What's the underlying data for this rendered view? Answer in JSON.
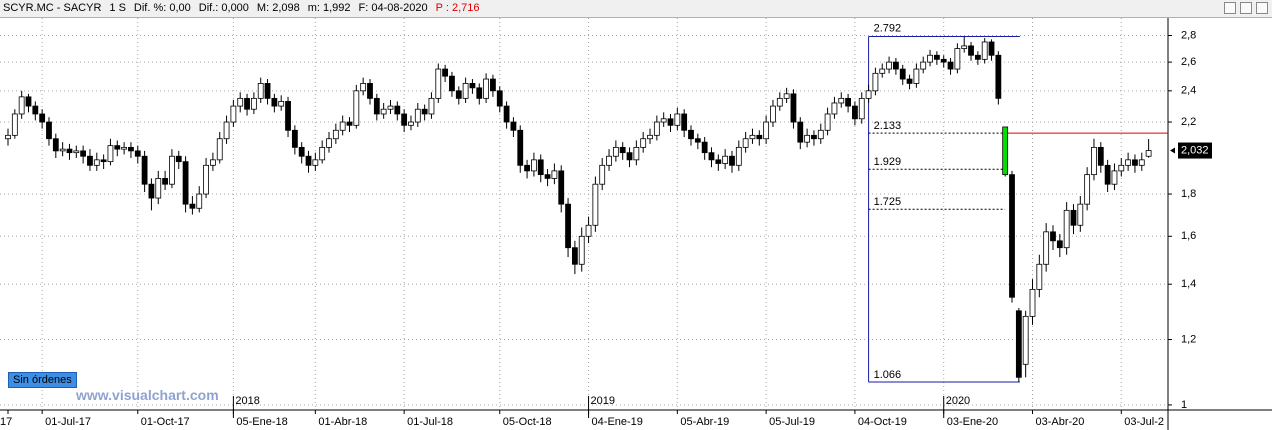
{
  "header": {
    "symbol": "SCYR.MC - SACYR",
    "period": "1 S",
    "dif_pct": "Dif. %: 0,00",
    "dif": "Dif.: 0,000",
    "max": "M: 2,098",
    "min": "m: 1,992",
    "date": "F: 04-08-2020",
    "price": "P : 2,716"
  },
  "status_badge": "Sin órdenes",
  "watermark": "www.visualchart.com",
  "chart_data": {
    "type": "candlestick",
    "log_scale": true,
    "grid": true,
    "up_color": "#ffffff",
    "down_color": "#000000",
    "highlight": {
      "index": 146,
      "color": "#00e000"
    },
    "ylim": [
      0.986,
      2.94
    ],
    "yticks": [
      1,
      {
        "value": 1.2,
        "label": "1,2"
      },
      {
        "value": 1.4,
        "label": "1,4"
      },
      {
        "value": 1.6,
        "label": "1,6"
      },
      {
        "value": 1.8,
        "label": "1,8"
      },
      {
        "value": 2.2,
        "label": "2,2"
      },
      {
        "value": 2.4,
        "label": "2,4"
      },
      {
        "value": 2.6,
        "label": "2,6"
      },
      {
        "value": 2.8,
        "label": "2,8"
      }
    ],
    "last_price": {
      "value": 2.032,
      "label": "2,032"
    },
    "year_ticks": [
      {
        "value": 33,
        "label": "2018"
      },
      {
        "value": 85,
        "label": "2019"
      },
      {
        "value": 137,
        "label": "2020"
      }
    ],
    "fibonacci": {
      "from_index": 126,
      "to_index": 148,
      "levels": [
        2.792,
        2.133,
        1.929,
        1.725,
        1.066
      ],
      "color": "#1a1aa8",
      "ref_color": "#e00000"
    },
    "categories": [
      "17",
      null,
      null,
      null,
      null,
      "01-Jul-17",
      null,
      null,
      null,
      null,
      null,
      null,
      null,
      null,
      null,
      null,
      null,
      null,
      null,
      "01-Oct-17",
      null,
      null,
      null,
      null,
      null,
      null,
      null,
      null,
      null,
      null,
      null,
      null,
      null,
      "05-Ene-18",
      null,
      null,
      null,
      null,
      null,
      null,
      null,
      null,
      null,
      null,
      null,
      "01-Abr-18",
      null,
      null,
      null,
      null,
      null,
      null,
      null,
      null,
      null,
      null,
      null,
      null,
      "01-Jul-18",
      null,
      null,
      null,
      null,
      null,
      null,
      null,
      null,
      null,
      null,
      null,
      null,
      null,
      "05-Oct-18",
      null,
      null,
      null,
      null,
      null,
      null,
      null,
      null,
      null,
      null,
      null,
      null,
      "04-Ene-19",
      null,
      null,
      null,
      null,
      null,
      null,
      null,
      null,
      null,
      null,
      null,
      null,
      "05-Abr-19",
      null,
      null,
      null,
      null,
      null,
      null,
      null,
      null,
      null,
      null,
      null,
      null,
      "05-Jul-19",
      null,
      null,
      null,
      null,
      null,
      null,
      null,
      null,
      null,
      null,
      null,
      null,
      "04-Oct-19",
      null,
      null,
      null,
      null,
      null,
      null,
      null,
      null,
      null,
      null,
      null,
      null,
      "03-Ene-20",
      null,
      null,
      null,
      null,
      null,
      null,
      null,
      null,
      null,
      null,
      null,
      null,
      "03-Abr-20",
      null,
      null,
      null,
      null,
      null,
      null,
      null,
      null,
      null,
      null,
      null,
      null,
      "03-Jul-2",
      null,
      null,
      null,
      null
    ],
    "ohlc": [
      [
        2.1,
        2.16,
        2.06,
        2.12
      ],
      [
        2.12,
        2.28,
        2.1,
        2.25
      ],
      [
        2.25,
        2.4,
        2.22,
        2.36
      ],
      [
        2.36,
        2.38,
        2.26,
        2.3
      ],
      [
        2.3,
        2.33,
        2.21,
        2.25
      ],
      [
        2.25,
        2.28,
        2.16,
        2.2
      ],
      [
        2.2,
        2.23,
        2.06,
        2.1
      ],
      [
        2.1,
        2.13,
        1.99,
        2.03
      ],
      [
        2.03,
        2.08,
        2.0,
        2.04
      ],
      [
        2.04,
        2.07,
        1.98,
        2.02
      ],
      [
        2.02,
        2.06,
        1.99,
        2.03
      ],
      [
        2.03,
        2.06,
        1.96,
        2.0
      ],
      [
        2.0,
        2.04,
        1.92,
        1.95
      ],
      [
        1.95,
        2.02,
        1.92,
        1.98
      ],
      [
        1.98,
        2.01,
        1.93,
        1.97
      ],
      [
        1.97,
        2.1,
        1.95,
        2.06
      ],
      [
        2.06,
        2.09,
        2.0,
        2.04
      ],
      [
        2.04,
        2.08,
        2.01,
        2.05
      ],
      [
        2.05,
        2.08,
        1.99,
        2.03
      ],
      [
        2.03,
        2.06,
        1.96,
        2.0
      ],
      [
        2.0,
        2.03,
        1.81,
        1.85
      ],
      [
        1.85,
        1.88,
        1.72,
        1.78
      ],
      [
        1.78,
        1.92,
        1.75,
        1.88
      ],
      [
        1.88,
        1.92,
        1.82,
        1.85
      ],
      [
        1.85,
        2.04,
        1.83,
        2.0
      ],
      [
        2.0,
        2.03,
        1.93,
        1.97
      ],
      [
        1.97,
        2.0,
        1.71,
        1.75
      ],
      [
        1.75,
        1.79,
        1.7,
        1.73
      ],
      [
        1.73,
        1.84,
        1.71,
        1.8
      ],
      [
        1.8,
        1.99,
        1.78,
        1.95
      ],
      [
        1.95,
        2.02,
        1.92,
        1.98
      ],
      [
        1.98,
        2.14,
        1.96,
        2.1
      ],
      [
        2.1,
        2.24,
        2.07,
        2.2
      ],
      [
        2.2,
        2.34,
        2.17,
        2.3
      ],
      [
        2.3,
        2.39,
        2.26,
        2.35
      ],
      [
        2.35,
        2.38,
        2.24,
        2.28
      ],
      [
        2.28,
        2.39,
        2.25,
        2.35
      ],
      [
        2.35,
        2.49,
        2.32,
        2.45
      ],
      [
        2.45,
        2.48,
        2.31,
        2.35
      ],
      [
        2.35,
        2.38,
        2.26,
        2.3
      ],
      [
        2.3,
        2.37,
        2.27,
        2.33
      ],
      [
        2.33,
        2.36,
        2.11,
        2.15
      ],
      [
        2.15,
        2.18,
        2.01,
        2.05
      ],
      [
        2.05,
        2.08,
        1.96,
        2.0
      ],
      [
        2.0,
        2.03,
        1.91,
        1.95
      ],
      [
        1.95,
        2.02,
        1.92,
        1.98
      ],
      [
        1.98,
        2.09,
        1.96,
        2.05
      ],
      [
        2.05,
        2.14,
        2.02,
        2.1
      ],
      [
        2.1,
        2.19,
        2.07,
        2.15
      ],
      [
        2.15,
        2.24,
        2.12,
        2.2
      ],
      [
        2.2,
        2.23,
        2.14,
        2.18
      ],
      [
        2.18,
        2.44,
        2.16,
        2.4
      ],
      [
        2.4,
        2.49,
        2.37,
        2.45
      ],
      [
        2.45,
        2.48,
        2.31,
        2.35
      ],
      [
        2.35,
        2.38,
        2.21,
        2.25
      ],
      [
        2.25,
        2.32,
        2.22,
        2.28
      ],
      [
        2.28,
        2.34,
        2.25,
        2.3
      ],
      [
        2.3,
        2.33,
        2.21,
        2.25
      ],
      [
        2.25,
        2.28,
        2.14,
        2.18
      ],
      [
        2.18,
        2.24,
        2.15,
        2.2
      ],
      [
        2.2,
        2.32,
        2.17,
        2.28
      ],
      [
        2.28,
        2.31,
        2.21,
        2.25
      ],
      [
        2.25,
        2.39,
        2.22,
        2.35
      ],
      [
        2.35,
        2.59,
        2.32,
        2.55
      ],
      [
        2.55,
        2.58,
        2.46,
        2.5
      ],
      [
        2.5,
        2.53,
        2.36,
        2.4
      ],
      [
        2.4,
        2.43,
        2.31,
        2.35
      ],
      [
        2.35,
        2.49,
        2.32,
        2.45
      ],
      [
        2.45,
        2.48,
        2.38,
        2.42
      ],
      [
        2.42,
        2.45,
        2.31,
        2.35
      ],
      [
        2.35,
        2.52,
        2.32,
        2.48
      ],
      [
        2.48,
        2.51,
        2.36,
        2.4
      ],
      [
        2.4,
        2.43,
        2.26,
        2.3
      ],
      [
        2.3,
        2.33,
        2.16,
        2.2
      ],
      [
        2.2,
        2.23,
        2.11,
        2.15
      ],
      [
        2.15,
        2.18,
        1.91,
        1.95
      ],
      [
        1.95,
        1.98,
        1.88,
        1.92
      ],
      [
        1.92,
        2.02,
        1.89,
        1.98
      ],
      [
        1.98,
        2.01,
        1.86,
        1.9
      ],
      [
        1.9,
        1.93,
        1.84,
        1.88
      ],
      [
        1.88,
        1.96,
        1.85,
        1.92
      ],
      [
        1.92,
        1.95,
        1.71,
        1.75
      ],
      [
        1.75,
        1.78,
        1.51,
        1.55
      ],
      [
        1.55,
        1.58,
        1.44,
        1.48
      ],
      [
        1.48,
        1.64,
        1.45,
        1.6
      ],
      [
        1.6,
        1.69,
        1.57,
        1.65
      ],
      [
        1.65,
        1.89,
        1.62,
        1.85
      ],
      [
        1.85,
        1.99,
        1.82,
        1.95
      ],
      [
        1.95,
        2.04,
        1.92,
        2.0
      ],
      [
        2.0,
        2.09,
        1.97,
        2.05
      ],
      [
        2.05,
        2.08,
        1.98,
        2.02
      ],
      [
        2.02,
        2.05,
        1.94,
        1.98
      ],
      [
        1.98,
        2.09,
        1.95,
        2.05
      ],
      [
        2.05,
        2.14,
        2.02,
        2.1
      ],
      [
        2.1,
        2.16,
        2.07,
        2.12
      ],
      [
        2.12,
        2.24,
        2.09,
        2.2
      ],
      [
        2.2,
        2.26,
        2.17,
        2.22
      ],
      [
        2.22,
        2.25,
        2.14,
        2.18
      ],
      [
        2.18,
        2.29,
        2.15,
        2.25
      ],
      [
        2.25,
        2.28,
        2.11,
        2.15
      ],
      [
        2.15,
        2.18,
        2.06,
        2.1
      ],
      [
        2.1,
        2.13,
        2.04,
        2.08
      ],
      [
        2.08,
        2.11,
        1.98,
        2.02
      ],
      [
        2.02,
        2.05,
        1.94,
        1.98
      ],
      [
        1.98,
        2.01,
        1.92,
        1.96
      ],
      [
        1.96,
        2.04,
        1.93,
        2.0
      ],
      [
        2.0,
        2.03,
        1.91,
        1.95
      ],
      [
        1.95,
        2.09,
        1.92,
        2.05
      ],
      [
        2.05,
        2.14,
        2.02,
        2.1
      ],
      [
        2.1,
        2.16,
        2.07,
        2.12
      ],
      [
        2.12,
        2.15,
        2.06,
        2.1
      ],
      [
        2.1,
        2.24,
        2.07,
        2.2
      ],
      [
        2.2,
        2.34,
        2.17,
        2.3
      ],
      [
        2.3,
        2.39,
        2.27,
        2.35
      ],
      [
        2.35,
        2.42,
        2.32,
        2.38
      ],
      [
        2.38,
        2.41,
        2.16,
        2.2
      ],
      [
        2.2,
        2.23,
        2.04,
        2.08
      ],
      [
        2.08,
        2.16,
        2.05,
        2.12
      ],
      [
        2.12,
        2.15,
        2.06,
        2.1
      ],
      [
        2.1,
        2.19,
        2.07,
        2.15
      ],
      [
        2.15,
        2.29,
        2.12,
        2.25
      ],
      [
        2.25,
        2.36,
        2.22,
        2.32
      ],
      [
        2.32,
        2.39,
        2.29,
        2.35
      ],
      [
        2.35,
        2.38,
        2.26,
        2.3
      ],
      [
        2.3,
        2.33,
        2.18,
        2.22
      ],
      [
        2.22,
        2.39,
        2.19,
        2.35
      ],
      [
        2.35,
        2.44,
        2.32,
        2.4
      ],
      [
        2.4,
        2.56,
        2.37,
        2.52
      ],
      [
        2.52,
        2.59,
        2.49,
        2.55
      ],
      [
        2.55,
        2.64,
        2.52,
        2.6
      ],
      [
        2.6,
        2.63,
        2.51,
        2.55
      ],
      [
        2.55,
        2.58,
        2.44,
        2.48
      ],
      [
        2.48,
        2.51,
        2.41,
        2.45
      ],
      [
        2.45,
        2.59,
        2.42,
        2.55
      ],
      [
        2.55,
        2.64,
        2.52,
        2.6
      ],
      [
        2.6,
        2.69,
        2.57,
        2.65
      ],
      [
        2.65,
        2.68,
        2.58,
        2.62
      ],
      [
        2.62,
        2.65,
        2.56,
        2.6
      ],
      [
        2.6,
        2.63,
        2.51,
        2.55
      ],
      [
        2.55,
        2.74,
        2.52,
        2.7
      ],
      [
        2.7,
        2.792,
        2.67,
        2.72
      ],
      [
        2.72,
        2.75,
        2.61,
        2.65
      ],
      [
        2.65,
        2.68,
        2.58,
        2.62
      ],
      [
        2.62,
        2.78,
        2.59,
        2.75
      ],
      [
        2.75,
        2.77,
        2.61,
        2.65
      ],
      [
        2.65,
        2.68,
        2.31,
        2.35
      ],
      [
        2.17,
        2.17,
        1.89,
        1.9
      ],
      [
        1.9,
        1.92,
        1.33,
        1.35
      ],
      [
        1.3,
        1.31,
        1.066,
        1.08
      ],
      [
        1.12,
        1.3,
        1.08,
        1.28
      ],
      [
        1.28,
        1.42,
        1.25,
        1.38
      ],
      [
        1.38,
        1.52,
        1.35,
        1.48
      ],
      [
        1.48,
        1.66,
        1.45,
        1.62
      ],
      [
        1.62,
        1.65,
        1.54,
        1.58
      ],
      [
        1.58,
        1.61,
        1.51,
        1.55
      ],
      [
        1.55,
        1.76,
        1.52,
        1.72
      ],
      [
        1.72,
        1.75,
        1.61,
        1.65
      ],
      [
        1.65,
        1.79,
        1.62,
        1.75
      ],
      [
        1.75,
        1.94,
        1.72,
        1.9
      ],
      [
        1.9,
        2.1,
        1.87,
        2.05
      ],
      [
        2.05,
        2.08,
        1.91,
        1.95
      ],
      [
        1.95,
        1.98,
        1.81,
        1.85
      ],
      [
        1.85,
        1.96,
        1.82,
        1.92
      ],
      [
        1.92,
        1.99,
        1.89,
        1.95
      ],
      [
        1.95,
        2.02,
        1.92,
        1.98
      ],
      [
        1.98,
        2.01,
        1.91,
        1.95
      ],
      [
        1.95,
        2.02,
        1.92,
        1.98
      ],
      [
        2.0,
        2.098,
        1.992,
        2.032
      ]
    ]
  }
}
